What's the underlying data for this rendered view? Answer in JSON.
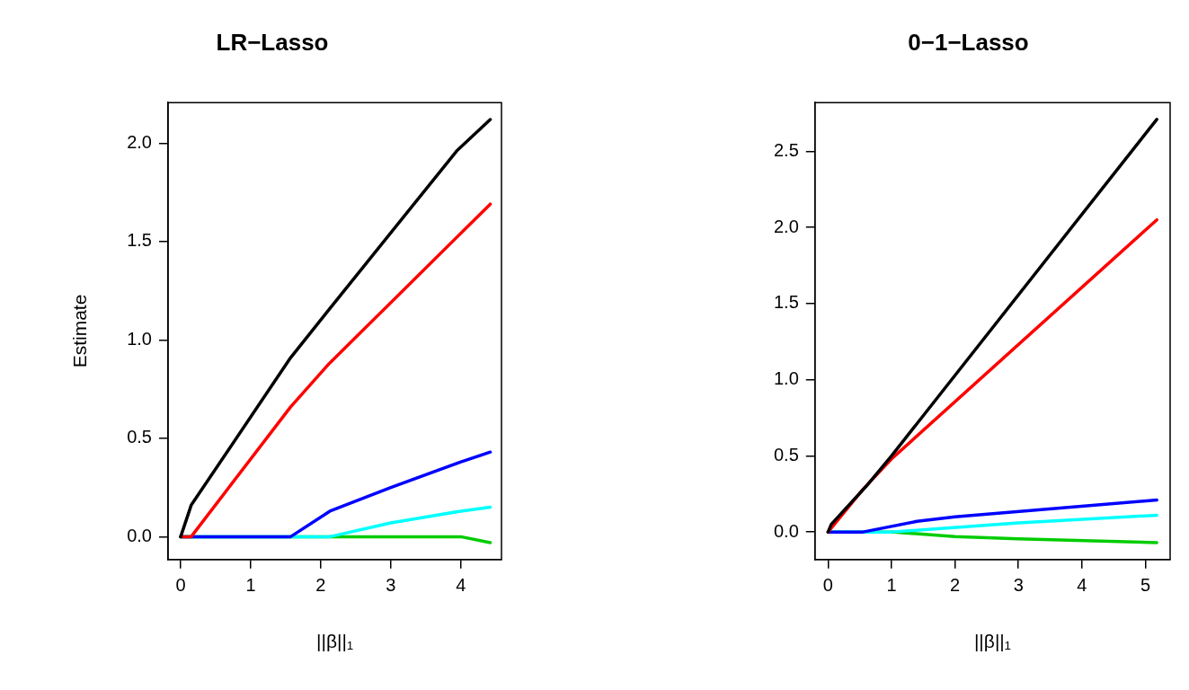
{
  "chart_data": [
    {
      "type": "line",
      "title": "LR−Lasso",
      "xlabel": "||β||₁",
      "ylabel": "Estimate",
      "xlim": [
        -0.18,
        4.58
      ],
      "ylim": [
        -0.116,
        2.206
      ],
      "xticks": [
        0,
        1,
        2,
        3,
        4
      ],
      "yticks": [
        {
          "value": 0,
          "label": "0.0"
        },
        {
          "value": 0.5,
          "label": "0.5"
        },
        {
          "value": 1,
          "label": "1.0"
        },
        {
          "value": 1.5,
          "label": "1.5"
        },
        {
          "value": 2,
          "label": "2.0"
        }
      ],
      "grid": false,
      "legend": false,
      "marker": "none",
      "line_style": "solid",
      "series": [
        {
          "color": "#000000",
          "x": [
            0,
            0.15,
            1.57,
            2.13,
            3.94,
            4.42
          ],
          "values": [
            0,
            0.16,
            0.91,
            1.16,
            1.96,
            2.12
          ]
        },
        {
          "color": "#ff0000",
          "x": [
            0,
            0.15,
            1.57,
            2.12,
            4.42
          ],
          "values": [
            0,
            0,
            0.66,
            0.88,
            1.69
          ]
        },
        {
          "color": "#0000ff",
          "x": [
            0,
            1.57,
            2.13,
            3,
            4,
            4.42
          ],
          "values": [
            0,
            0,
            0.13,
            0.25,
            0.38,
            0.43
          ]
        },
        {
          "color": "#00ffff",
          "x": [
            0,
            2.13,
            3,
            4,
            4.42
          ],
          "values": [
            0,
            0,
            0.07,
            0.13,
            0.15
          ]
        },
        {
          "color": "#00cc00",
          "x": [
            0,
            4,
            4.42
          ],
          "values": [
            0,
            0,
            -0.03
          ]
        }
      ]
    },
    {
      "type": "line",
      "title": "0−1−Lasso",
      "xlabel": "||β||₁",
      "xlim": [
        -0.207,
        5.39
      ],
      "ylim": [
        -0.181,
        2.82
      ],
      "xticks": [
        0,
        1,
        2,
        3,
        4,
        5
      ],
      "yticks": [
        {
          "value": 0,
          "label": "0.0"
        },
        {
          "value": 0.5,
          "label": "0.5"
        },
        {
          "value": 1,
          "label": "1.0"
        },
        {
          "value": 1.5,
          "label": "1.5"
        },
        {
          "value": 2,
          "label": "2.0"
        },
        {
          "value": 2.5,
          "label": "2.5"
        }
      ],
      "grid": false,
      "legend": false,
      "marker": "none",
      "line_style": "solid",
      "series": [
        {
          "color": "#000000",
          "x": [
            0,
            0.05,
            0.6,
            1,
            5.18
          ],
          "values": [
            0,
            0.05,
            0.3,
            0.5,
            2.71
          ]
        },
        {
          "color": "#ff0000",
          "x": [
            0,
            0.55,
            1,
            5.18
          ],
          "values": [
            0,
            0.28,
            0.48,
            2.05
          ]
        },
        {
          "color": "#0000ff",
          "x": [
            0,
            0.55,
            1.4,
            2,
            5.18
          ],
          "values": [
            0,
            0,
            0.07,
            0.1,
            0.21
          ]
        },
        {
          "color": "#00ffff",
          "x": [
            0,
            1,
            3,
            5.18
          ],
          "values": [
            0,
            0,
            0.06,
            0.11
          ]
        },
        {
          "color": "#00cc00",
          "x": [
            0,
            1,
            2,
            3,
            5.18
          ],
          "values": [
            0,
            0,
            -0.03,
            -0.045,
            -0.07
          ]
        }
      ]
    }
  ]
}
